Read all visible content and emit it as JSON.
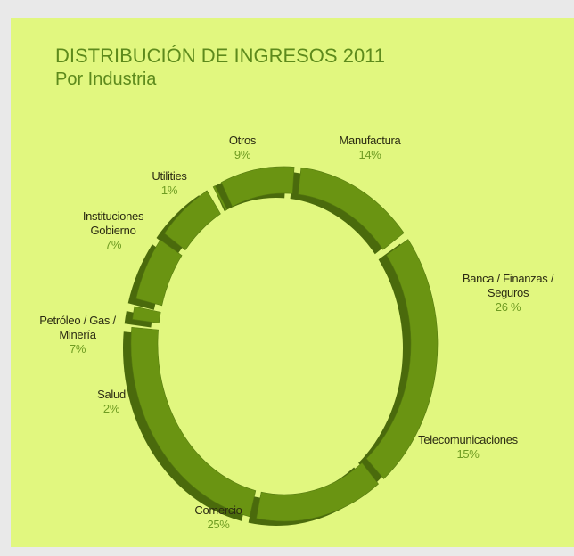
{
  "chart_data": {
    "type": "donut",
    "title": "DISTRIBUCIÓN DE INGRESOS 2011",
    "subtitle": "Por Industria",
    "categories": [
      "Manufactura",
      "Banca / Finanzas / Seguros",
      "Telecomunicaciones",
      "Comercio",
      "Salud",
      "Petróleo / Gas / Minería",
      "Instituciones Gobierno",
      "Utilities",
      "Otros"
    ],
    "values": [
      14,
      26,
      15,
      25,
      2,
      7,
      7,
      1,
      9
    ],
    "value_labels": [
      "14%",
      "26 %",
      "15%",
      "25%",
      "2%",
      "7%",
      "7%",
      "1%",
      "9%"
    ],
    "color": "#6a9412"
  }
}
